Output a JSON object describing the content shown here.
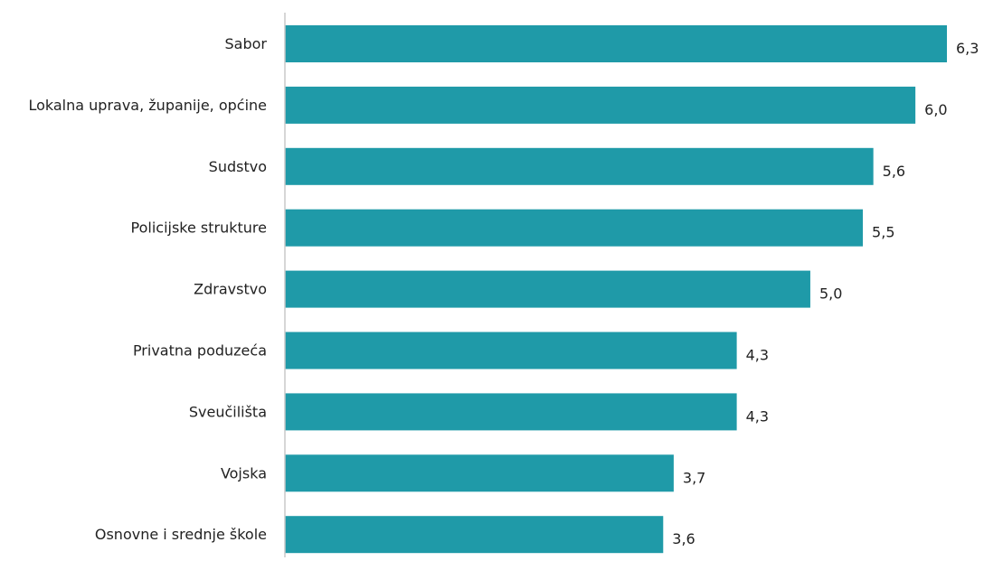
{
  "chart_data": {
    "type": "bar",
    "orientation": "horizontal",
    "categories": [
      "Sabor",
      "Lokalna uprava, županije, općine",
      "Sudstvo",
      "Policijske strukture",
      "Zdravstvo",
      "Privatna poduzeća",
      "Sveučilišta",
      "Vojska",
      "Osnovne i srednje škole"
    ],
    "values": [
      6.3,
      6.0,
      5.6,
      5.5,
      5.0,
      4.3,
      4.3,
      3.7,
      3.6
    ],
    "value_labels": [
      "6,3",
      "6,0",
      "5,6",
      "5,5",
      "5,0",
      "4,3",
      "4,3",
      "3,7",
      "3,6"
    ],
    "title": "",
    "xlabel": "",
    "ylabel": "",
    "xlim": [
      0,
      6.3
    ],
    "grid": false,
    "legend": "none",
    "bar_color": "#1f9aa8",
    "axis_color": "#c8c8c8"
  }
}
